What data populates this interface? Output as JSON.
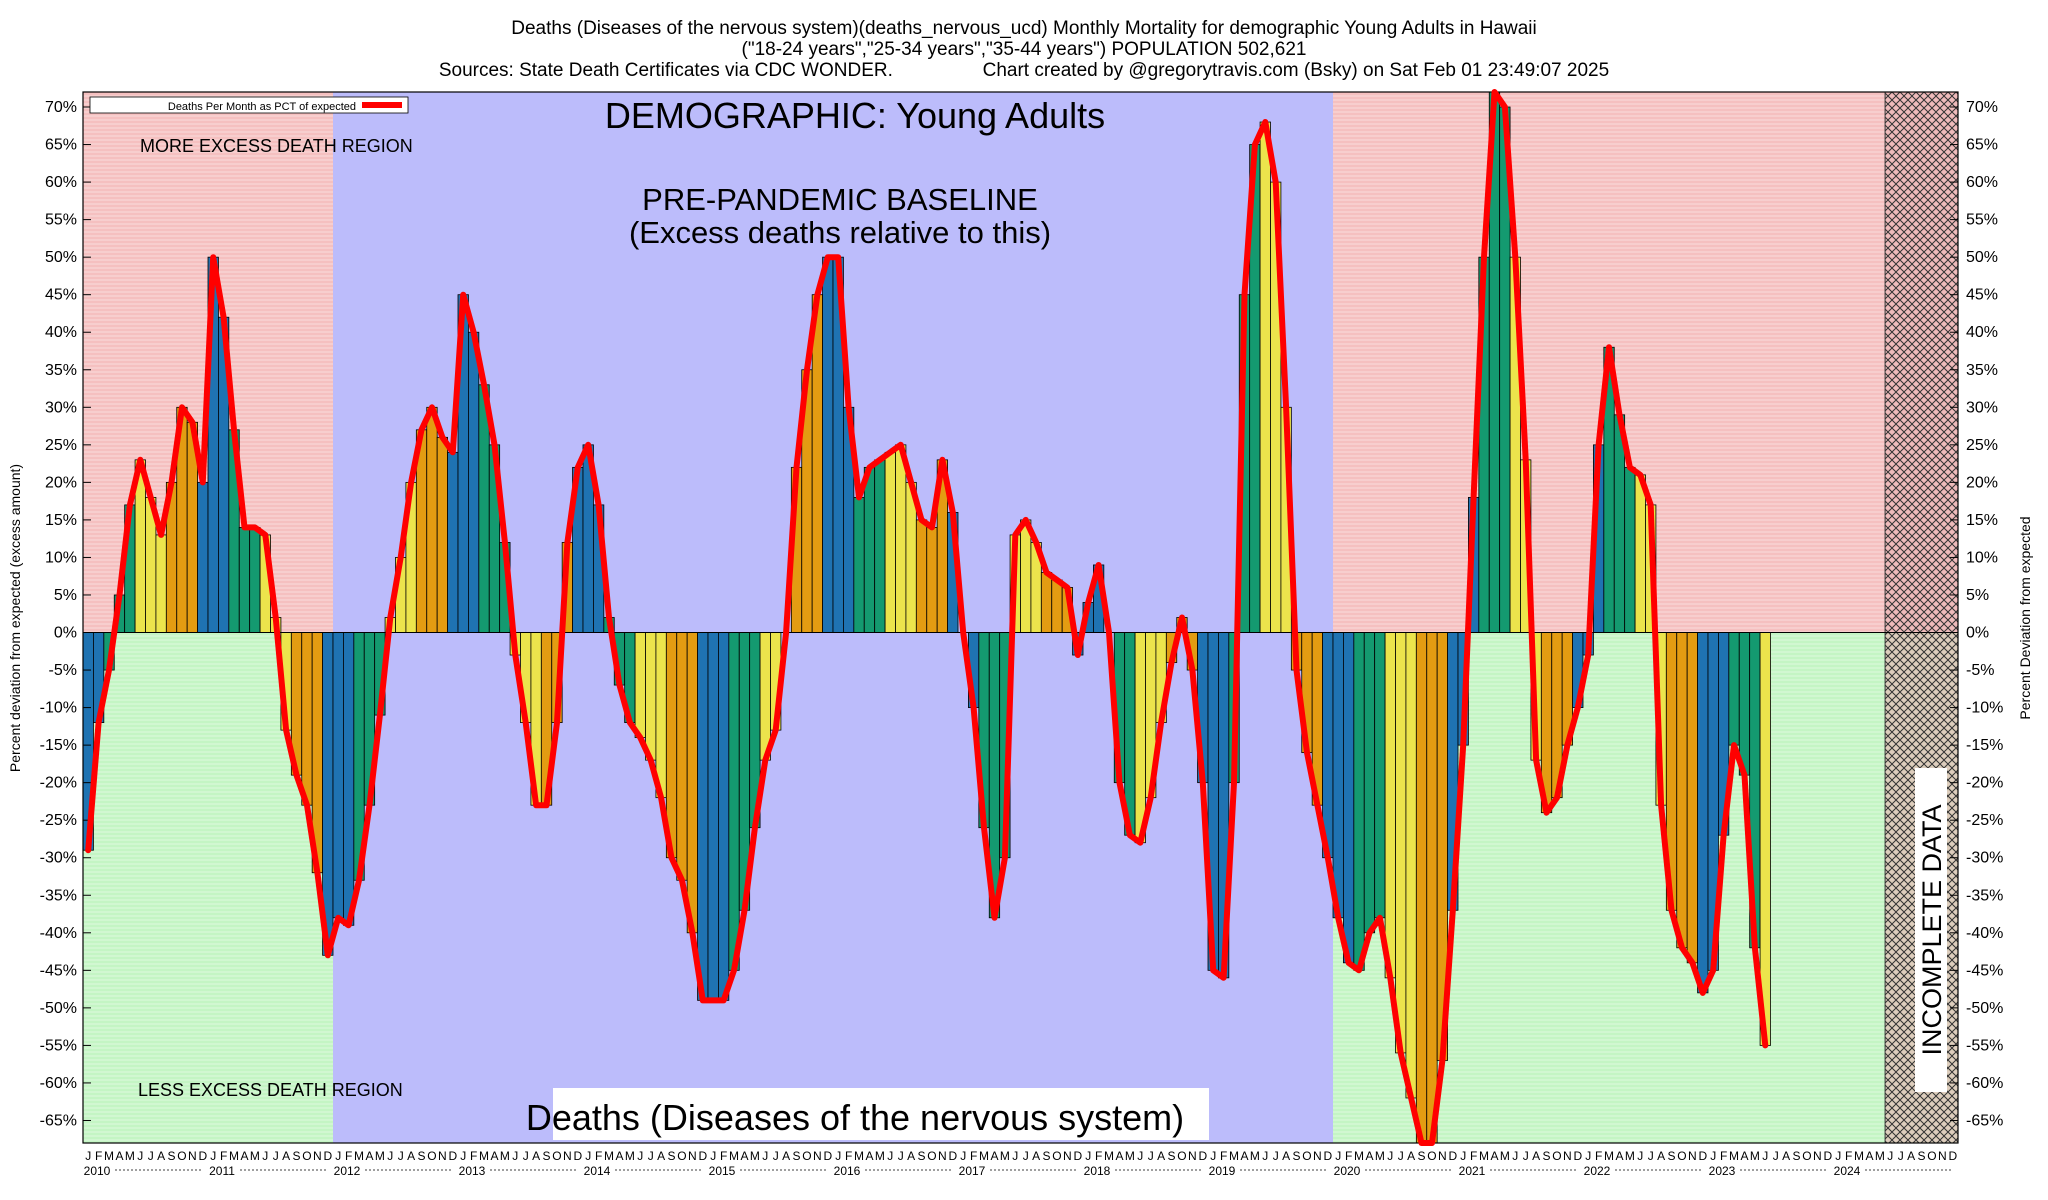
{
  "header": {
    "line1": "Deaths (Diseases of the nervous system)(deaths_nervous_ucd) Monthly Mortality for demographic Young Adults in Hawaii",
    "line2": "(\"18-24 years\",\"25-34 years\",\"35-44 years\") POPULATION 502,621",
    "line3": "Sources: State Death Certificates via CDC WONDER.                 Chart created by @gregorytravis.com (Bsky) on Sat Feb 01 23:49:07 2025"
  },
  "annotations": {
    "demographic": "DEMOGRAPHIC: Young Adults",
    "baseline_line1": "PRE-PANDEMIC BASELINE",
    "baseline_line2": "(Excess deaths relative to this)",
    "more_excess": "MORE EXCESS DEATH REGION",
    "less_excess": "LESS EXCESS DEATH REGION",
    "bottom_title": "Deaths (Diseases of the nervous system)",
    "incomplete": "INCOMPLETE DATA"
  },
  "colors": {
    "red_region": "#f5c0c0",
    "green_region": "#c4f5c4",
    "baseline_region": "#bcbcfb",
    "line": "#ff0000",
    "bar_blue": "#1f73b2",
    "bar_green": "#149a70",
    "bar_yellow": "#ece44c",
    "bar_orange": "#e39c12",
    "incomplete_hatch": "#e8b0b0"
  },
  "chart_data": {
    "type": "bar",
    "legend": {
      "label": "Deaths Per Month as PCT of expected",
      "position": "top-left"
    },
    "ylabel_left": "Percent deviation from expected (excess amount)",
    "ylabel_right": "Percent Deviation from expected",
    "ylim": [
      -68,
      72
    ],
    "yticks": [
      70,
      65,
      60,
      55,
      50,
      45,
      40,
      35,
      30,
      25,
      20,
      15,
      10,
      5,
      0,
      -5,
      -10,
      -15,
      -20,
      -25,
      -30,
      -35,
      -40,
      -45,
      -50,
      -55,
      -60,
      -65
    ],
    "ytick_labels": [
      "70%",
      "65%",
      "60%",
      "55%",
      "50%",
      "45%",
      "40%",
      "35%",
      "30%",
      "25%",
      "20%",
      "15%",
      "10%",
      "5%",
      "0%",
      "-5%",
      "-10%",
      "-15%",
      "-20%",
      "-25%",
      "-30%",
      "-35%",
      "-40%",
      "-45%",
      "-50%",
      "-55%",
      "-60%",
      "-65%"
    ],
    "month_letters": [
      "J",
      "F",
      "M",
      "A",
      "M",
      "J",
      "J",
      "A",
      "S",
      "O",
      "N",
      "D"
    ],
    "years": [
      "2010",
      "2011",
      "2012",
      "2013",
      "2014",
      "2015",
      "2016",
      "2017",
      "2018",
      "2019",
      "2020",
      "2021",
      "2022",
      "2023",
      "2024"
    ],
    "start": "2010-01",
    "baseline_period": [
      "2012-01",
      "2019-12"
    ],
    "incomplete_from": "2024-06",
    "values": [
      -29,
      -12,
      -5,
      5,
      17,
      23,
      18,
      13,
      20,
      30,
      28,
      20,
      50,
      42,
      27,
      14,
      14,
      13,
      2,
      -13,
      -19,
      -23,
      -32,
      -43,
      -38,
      -39,
      -33,
      -23,
      -11,
      2,
      10,
      20,
      27,
      30,
      26,
      24,
      45,
      40,
      33,
      25,
      12,
      -3,
      -12,
      -23,
      -23,
      -12,
      12,
      22,
      25,
      17,
      2,
      -7,
      -12,
      -14,
      -17,
      -22,
      -30,
      -33,
      -40,
      -49,
      -49,
      -49,
      -45,
      -37,
      -26,
      -17,
      -13,
      0,
      22,
      35,
      45,
      50,
      50,
      30,
      18,
      22,
      23,
      24,
      25,
      20,
      15,
      14,
      23,
      16,
      0,
      -10,
      -26,
      -38,
      -30,
      13,
      15,
      12,
      8,
      7,
      6,
      -3,
      4,
      9,
      0,
      -20,
      -27,
      -28,
      -22,
      -12,
      -4,
      2,
      -5,
      -20,
      -45,
      -46,
      -20,
      45,
      65,
      68,
      60,
      30,
      -5,
      -16,
      -23,
      -30,
      -38,
      -44,
      -45,
      -40,
      -38,
      -46,
      -56,
      -62,
      -68,
      -68,
      -57,
      -37,
      -15,
      18,
      50,
      72,
      70,
      50,
      23,
      -17,
      -24,
      -22,
      -15,
      -10,
      -3,
      25,
      38,
      29,
      22,
      21,
      17,
      -23,
      -37,
      -42,
      -44,
      -48,
      -45,
      -27,
      -15,
      -19,
      -42,
      -55
    ]
  }
}
